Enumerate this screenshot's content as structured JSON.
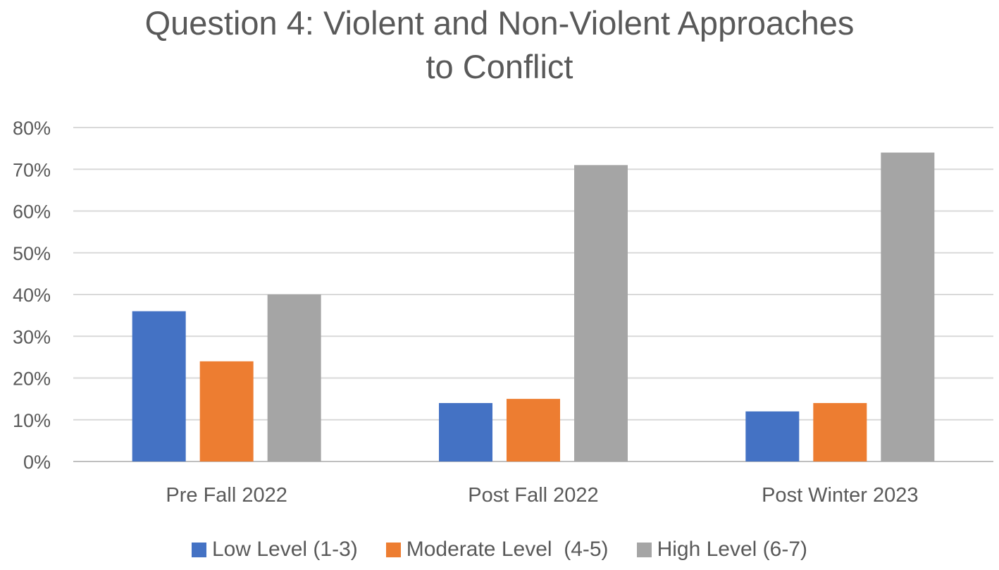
{
  "chart_data": {
    "type": "bar",
    "title_lines": [
      "Question 4: Violent and Non-Violent Approaches",
      "to Conflict"
    ],
    "categories": [
      "Pre Fall 2022",
      "Post Fall 2022",
      "Post Winter 2023"
    ],
    "series": [
      {
        "name": "Low Level (1-3)",
        "color": "#4472C4",
        "values": [
          36,
          14,
          12
        ]
      },
      {
        "name": "Moderate Level  (4-5)",
        "color": "#ED7D31",
        "values": [
          24,
          15,
          14
        ]
      },
      {
        "name": "High Level (6-7)",
        "color": "#A5A5A5",
        "values": [
          40,
          71,
          74
        ]
      }
    ],
    "y_ticks": [
      "0%",
      "10%",
      "20%",
      "30%",
      "40%",
      "50%",
      "60%",
      "70%",
      "80%"
    ],
    "ylim": [
      0,
      80
    ],
    "grid": true,
    "legend_position": "bottom"
  }
}
